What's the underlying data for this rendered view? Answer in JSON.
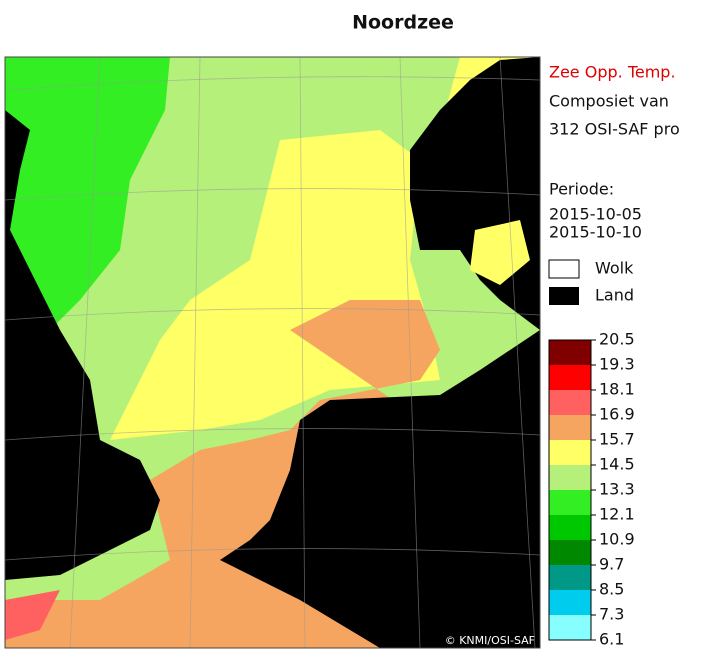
{
  "title": "Noordzee",
  "legend": {
    "variable": "Zee Opp. Temp.",
    "line1": "Composiet van",
    "line2": "312 OSI-SAF pro",
    "period_label": "Periode:",
    "start": "2015-10-05",
    "end": "2015-10-10",
    "cloud": "Wolk",
    "land": "Land"
  },
  "colorbar": {
    "ticks": [
      20.5,
      19.3,
      18.1,
      16.9,
      15.7,
      14.5,
      13.3,
      12.1,
      10.9,
      9.7,
      8.5,
      7.3,
      6.1
    ],
    "colors": [
      "#800000",
      "#ff0000",
      "#ff6060",
      "#f5a55f",
      "#ffff66",
      "#b4f07a",
      "#33ee22",
      "#00c800",
      "#008800",
      "#009988",
      "#00ccee",
      "#88ffff"
    ]
  },
  "copyright": "© KNMI/OSI-SAF"
}
